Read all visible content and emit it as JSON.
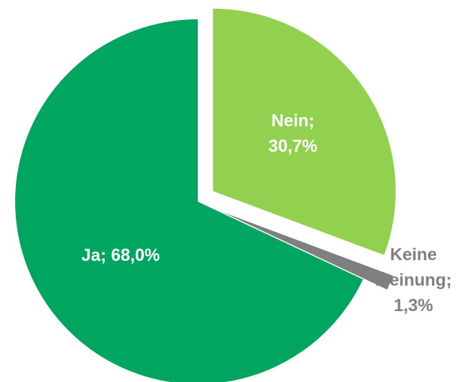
{
  "chart_data": {
    "type": "pie",
    "values": [
      30.7,
      1.3,
      68.0
    ],
    "value_labels": [
      [
        "Nein;",
        "30,7%"
      ],
      [
        "Keine",
        "Meinung;",
        "1,3%"
      ],
      [
        "Ja; 68,0%"
      ]
    ],
    "colors": [
      "#92d050",
      "#7f7f7f",
      "#00a65f"
    ],
    "label_colors": [
      "#ffffff",
      "#7f7f7f",
      "#ffffff"
    ],
    "start_angle": 0,
    "direction": "clockwise"
  }
}
